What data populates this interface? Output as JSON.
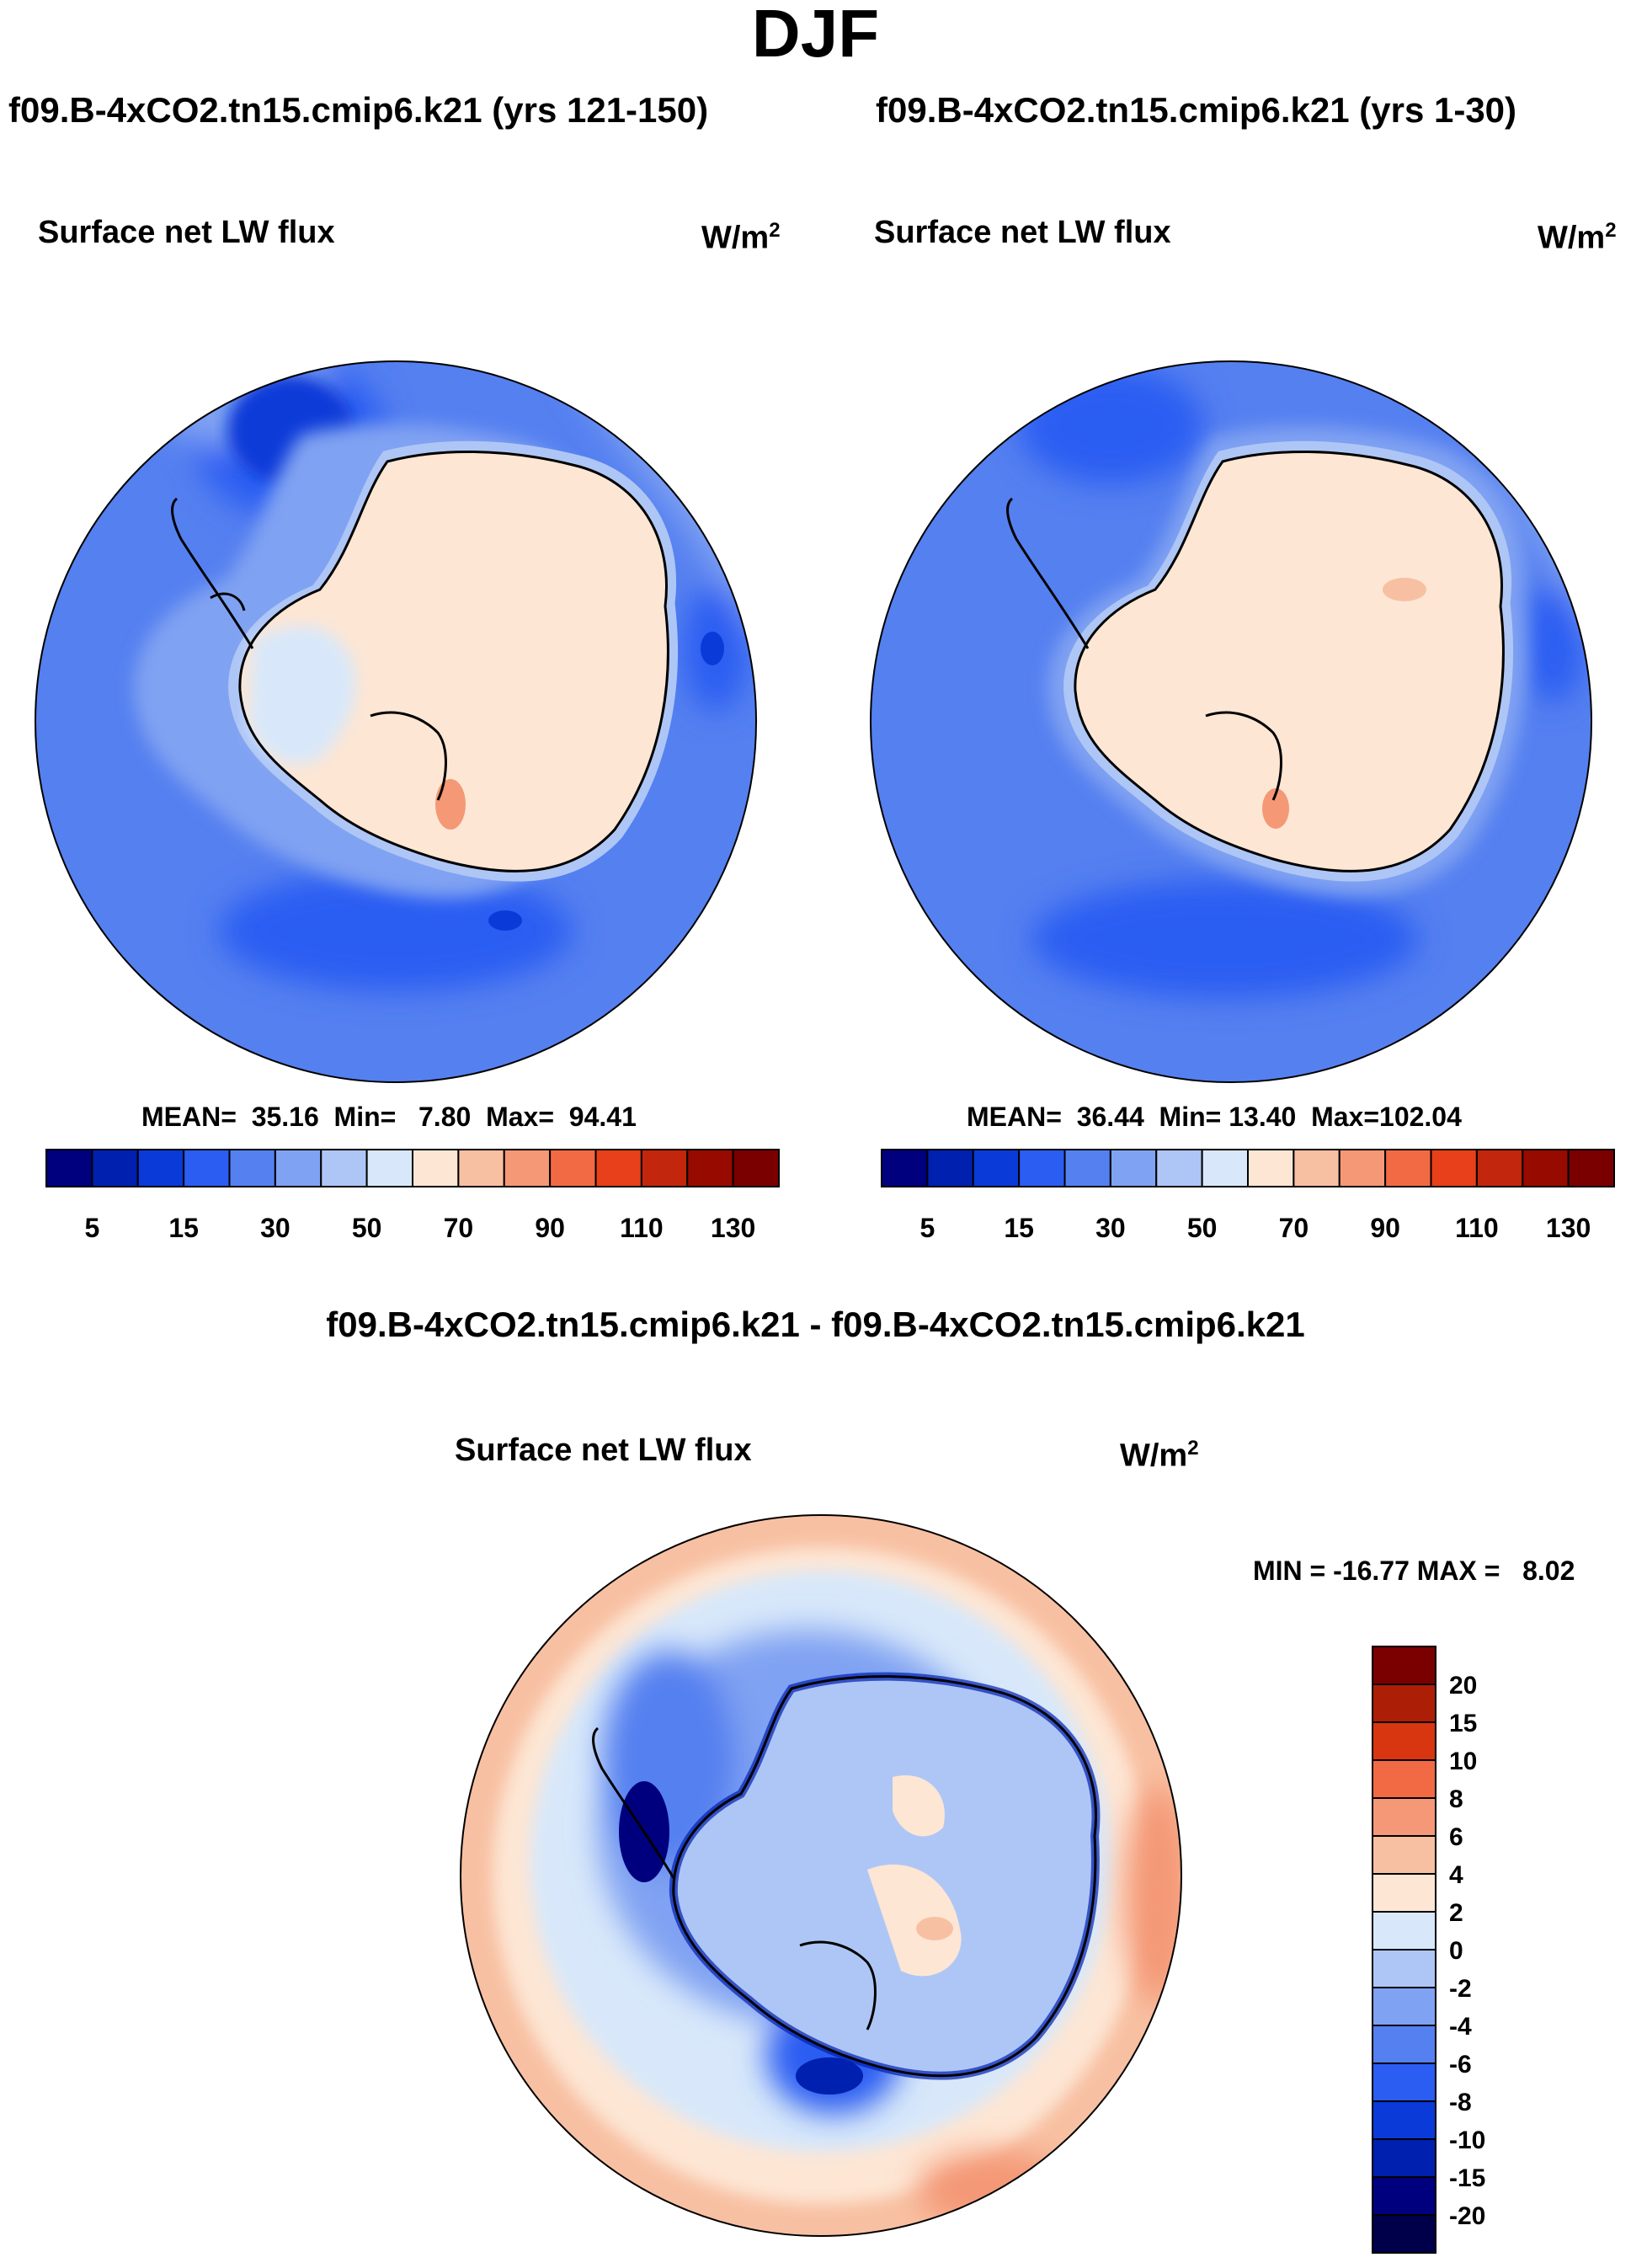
{
  "season": "DJF",
  "panels": [
    {
      "title": "f09.B-4xCO2.tn15.cmip6.k21 (yrs 121-150)",
      "field": "Surface net LW flux",
      "units_base": "W/m",
      "units_exp": "2",
      "stats": {
        "mean_label": "MEAN=",
        "mean": "35.16",
        "min_label": "Min=",
        "min": "7.80",
        "max_label": "Max=",
        "max": "94.41"
      }
    },
    {
      "title": "f09.B-4xCO2.tn15.cmip6.k21 (yrs 1-30)",
      "field": "Surface net LW flux",
      "units_base": "W/m",
      "units_exp": "2",
      "stats": {
        "mean_label": "MEAN=",
        "mean": "36.44",
        "min_label": "Min=",
        "min": "13.40",
        "max_label": "Max=",
        "max": "102.04"
      }
    }
  ],
  "difference_panel": {
    "title": "f09.B-4xCO2.tn15.cmip6.k21 - f09.B-4xCO2.tn15.cmip6.k21",
    "field": "Surface net LW flux",
    "units_base": "W/m",
    "units_exp": "2",
    "stats": {
      "min_label": "MIN =",
      "min": "-16.77",
      "max_label": "MAX =",
      "max": "8.02"
    }
  },
  "chart_data": {
    "type": "heatmap",
    "projection": "south-polar-stereographic",
    "abs_colorbar": {
      "orientation": "horizontal",
      "colors": [
        "#00007f",
        "#0020b0",
        "#0a3ad8",
        "#2b5df2",
        "#5580f0",
        "#80a2f2",
        "#aec6f6",
        "#d8e8fa",
        "#fde6d4",
        "#f8c0a2",
        "#f49876",
        "#f26a44",
        "#e8401a",
        "#c2260c",
        "#960a00",
        "#7a0000"
      ],
      "tick_labels": [
        "5",
        "15",
        "30",
        "50",
        "70",
        "90",
        "110",
        "130"
      ]
    },
    "diff_colorbar": {
      "orientation": "vertical",
      "colors": [
        "#7a0000",
        "#ad1e06",
        "#d83610",
        "#f26a44",
        "#f59878",
        "#f8c0a2",
        "#fde6d4",
        "#d8e8fa",
        "#aec6f6",
        "#80a2f2",
        "#5580f0",
        "#2b5df2",
        "#0a3ad8",
        "#0020b0",
        "#00007f"
      ],
      "tick_labels": [
        "20",
        "15",
        "10",
        "8",
        "6",
        "4",
        "2",
        "0",
        "-2",
        "-4",
        "-6",
        "-8",
        "-10",
        "-15",
        "-20"
      ]
    }
  }
}
